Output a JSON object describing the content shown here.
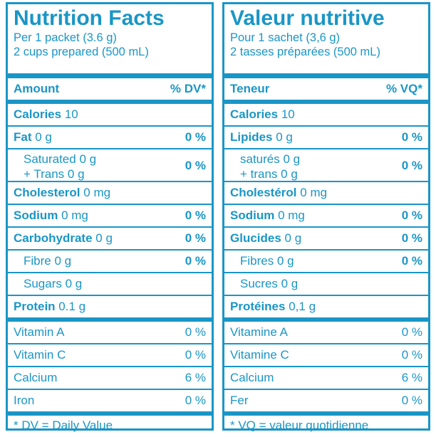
{
  "en": {
    "title": "Nutrition Facts",
    "serving1": "Per 1 packet (3.6 g)",
    "serving2": "2 cups prepared (500 mL)",
    "amount": "Amount",
    "dv_header": "% DV*",
    "calories_label": "Calories",
    "calories_value": "10",
    "fat_label": "Fat",
    "fat_value": "0 g",
    "fat_dv": "0 %",
    "sat_line1": "Saturated 0 g",
    "sat_line2": "+ Trans 0 g",
    "sat_dv": "0 %",
    "chol_label": "Cholesterol",
    "chol_value": "0 mg",
    "sodium_label": "Sodium",
    "sodium_value": "0 mg",
    "sodium_dv": "0 %",
    "carb_label": "Carbohydrate",
    "carb_value": "0 g",
    "carb_dv": "0 %",
    "fibre": "Fibre 0 g",
    "fibre_dv": "0 %",
    "sugars": "Sugars 0 g",
    "protein_label": "Protein",
    "protein_value": "0.1 g",
    "vit_a": "Vitamin A",
    "vit_a_dv": "0 %",
    "vit_c": "Vitamin C",
    "vit_c_dv": "0 %",
    "calcium": "Calcium",
    "calcium_dv": "6 %",
    "iron": "Iron",
    "iron_dv": "0 %",
    "footnote": "*  DV = Daily Value"
  },
  "fr": {
    "title": "Valeur nutritive",
    "serving1": "Pour 1 sachet (3,6 g)",
    "serving2": "2 tasses préparées (500 mL)",
    "amount": "Teneur",
    "dv_header": "% VQ*",
    "calories_label": "Calories",
    "calories_value": "10",
    "fat_label": "Lipides",
    "fat_value": "0 g",
    "fat_dv": "0 %",
    "sat_line1": "saturés 0 g",
    "sat_line2": "+ trans 0 g",
    "sat_dv": "0 %",
    "chol_label": "Cholestérol",
    "chol_value": "0 mg",
    "sodium_label": "Sodium",
    "sodium_value": "0 mg",
    "sodium_dv": "0 %",
    "carb_label": "Glucides",
    "carb_value": "0 g",
    "carb_dv": "0 %",
    "fibre": "Fibres 0 g",
    "fibre_dv": "0 %",
    "sugars": "Sucres 0 g",
    "protein_label": "Protéines",
    "protein_value": "0,1 g",
    "vit_a": "Vitamine A",
    "vit_a_dv": "0 %",
    "vit_c": "Vitamine C",
    "vit_c_dv": "0 %",
    "calcium": "Calcium",
    "calcium_dv": "6 %",
    "iron": "Fer",
    "iron_dv": "0 %",
    "footnote": "*  VQ = valeur quotidienne"
  },
  "colors": {
    "ink": "#1a96c6",
    "background": "#ffffff"
  }
}
